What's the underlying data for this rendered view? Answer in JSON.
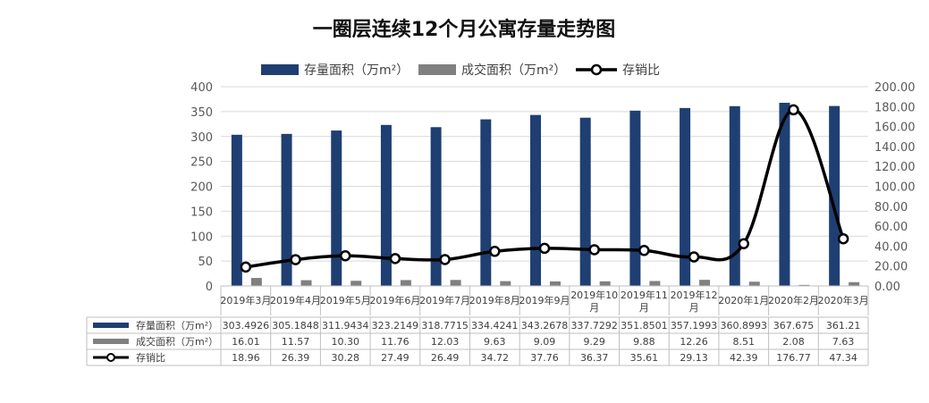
{
  "chart_data": {
    "type": "bar",
    "title": "一圈层连续12个月公寓存量走势图",
    "categories": [
      "2019年3月",
      "2019年4月",
      "2019年5月",
      "2019年6月",
      "2019年7月",
      "2019年8月",
      "2019年9月",
      "2019年10月",
      "2019年11月",
      "2019年12月",
      "2020年1月",
      "2020年2月",
      "2020年3月"
    ],
    "category_lines": [
      [
        "2019年3月"
      ],
      [
        "2019年4月"
      ],
      [
        "2019年5月"
      ],
      [
        "2019年6月"
      ],
      [
        "2019年7月"
      ],
      [
        "2019年8月"
      ],
      [
        "2019年9月"
      ],
      [
        "2019年10",
        "月"
      ],
      [
        "2019年11",
        "月"
      ],
      [
        "2019年12",
        "月"
      ],
      [
        "2020年1月"
      ],
      [
        "2020年2月"
      ],
      [
        "2020年3月"
      ]
    ],
    "series": [
      {
        "name": "存量面积（万m²）",
        "type": "bar",
        "axis": "left",
        "color": "#1f3f72",
        "values": [
          303.4926,
          305.1848,
          311.9434,
          323.2149,
          318.7715,
          334.4241,
          343.2678,
          337.7292,
          351.8501,
          357.1993,
          360.8993,
          367.675,
          361.21
        ],
        "labels": [
          "303.4926",
          "305.1848",
          "311.9434",
          "323.2149",
          "318.7715",
          "334.4241",
          "343.2678",
          "337.7292",
          "351.8501",
          "357.1993",
          "360.8993",
          "367.675",
          "361.21"
        ]
      },
      {
        "name": "成交面积（万m²）",
        "type": "bar",
        "axis": "left",
        "color": "#808080",
        "values": [
          16.01,
          11.57,
          10.3,
          11.76,
          12.03,
          9.63,
          9.09,
          9.29,
          9.88,
          12.26,
          8.51,
          2.08,
          7.63
        ],
        "labels": [
          "16.01",
          "11.57",
          "10.30",
          "11.76",
          "12.03",
          "9.63",
          "9.09",
          "9.29",
          "9.88",
          "12.26",
          "8.51",
          "2.08",
          "7.63"
        ]
      },
      {
        "name": "存销比",
        "type": "line",
        "axis": "right",
        "color": "#000000",
        "values": [
          18.96,
          26.39,
          30.28,
          27.49,
          26.49,
          34.72,
          37.76,
          36.37,
          35.61,
          29.13,
          42.39,
          176.77,
          47.34
        ],
        "labels": [
          "18.96",
          "26.39",
          "30.28",
          "27.49",
          "26.49",
          "34.72",
          "37.76",
          "36.37",
          "35.61",
          "29.13",
          "42.39",
          "176.77",
          "47.34"
        ]
      }
    ],
    "y_left": {
      "min": 0,
      "max": 400,
      "ticks": [
        "0",
        "50",
        "100",
        "150",
        "200",
        "250",
        "300",
        "350",
        "400"
      ]
    },
    "y_right": {
      "min": 0,
      "max": 200,
      "ticks": [
        "0.00",
        "20.00",
        "40.00",
        "60.00",
        "80.00",
        "100.00",
        "120.00",
        "140.00",
        "160.00",
        "180.00",
        "200.00"
      ]
    },
    "grid": true,
    "legend": "top",
    "data_table": true
  }
}
